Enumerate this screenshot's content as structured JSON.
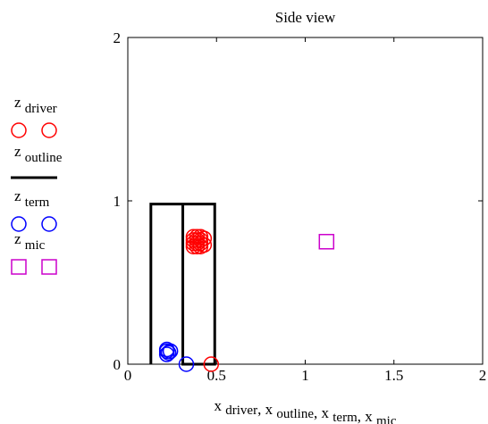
{
  "chart_data": {
    "type": "scatter",
    "title": "Side view",
    "xlim": [
      0,
      2
    ],
    "ylim": [
      0,
      2
    ],
    "x_ticks": [
      "0",
      "0.5",
      "1",
      "1.5",
      "2"
    ],
    "y_ticks": [
      "0",
      "1",
      "2"
    ],
    "xlabel_parts": [
      {
        "base": "x",
        "sub": "driver"
      },
      {
        "base": "x",
        "sub": "outline"
      },
      {
        "base": "x",
        "sub": "term"
      },
      {
        "base": "x",
        "sub": "mic"
      }
    ],
    "series": [
      {
        "name": "z driver",
        "marker": "circle",
        "color": "#ff0000",
        "points": [
          [
            0.47,
            0.0
          ],
          [
            0.37,
            0.72
          ],
          [
            0.37,
            0.74
          ],
          [
            0.37,
            0.76
          ],
          [
            0.37,
            0.78
          ],
          [
            0.39,
            0.72
          ],
          [
            0.39,
            0.74
          ],
          [
            0.39,
            0.76
          ],
          [
            0.39,
            0.78
          ],
          [
            0.41,
            0.72
          ],
          [
            0.41,
            0.74
          ],
          [
            0.41,
            0.76
          ],
          [
            0.41,
            0.78
          ],
          [
            0.43,
            0.73
          ],
          [
            0.43,
            0.77
          ]
        ]
      },
      {
        "name": "z outline",
        "marker": "line",
        "color": "#000000",
        "points": [
          [
            0.13,
            0.0
          ],
          [
            0.13,
            0.98
          ],
          [
            0.49,
            0.98
          ],
          [
            0.49,
            0.0
          ],
          [
            0.31,
            0.0
          ],
          [
            0.31,
            0.98
          ]
        ]
      },
      {
        "name": "z term",
        "marker": "circle",
        "color": "#0000ff",
        "points": [
          [
            0.22,
            0.06
          ],
          [
            0.22,
            0.08
          ],
          [
            0.22,
            0.09
          ],
          [
            0.23,
            0.07
          ],
          [
            0.24,
            0.08
          ],
          [
            0.33,
            0.0
          ]
        ]
      },
      {
        "name": "z mic",
        "marker": "square",
        "color": "#cc00cc",
        "points": [
          [
            1.12,
            0.75
          ]
        ]
      }
    ],
    "legend": {
      "position": "left",
      "entries": [
        {
          "base": "z",
          "sub": "driver",
          "marker": "circle",
          "color": "#ff0000"
        },
        {
          "base": "z",
          "sub": "outline",
          "marker": "line",
          "color": "#000000"
        },
        {
          "base": "z",
          "sub": "term",
          "marker": "circle",
          "color": "#0000ff"
        },
        {
          "base": "z",
          "sub": "mic",
          "marker": "square",
          "color": "#cc00cc"
        }
      ]
    }
  }
}
